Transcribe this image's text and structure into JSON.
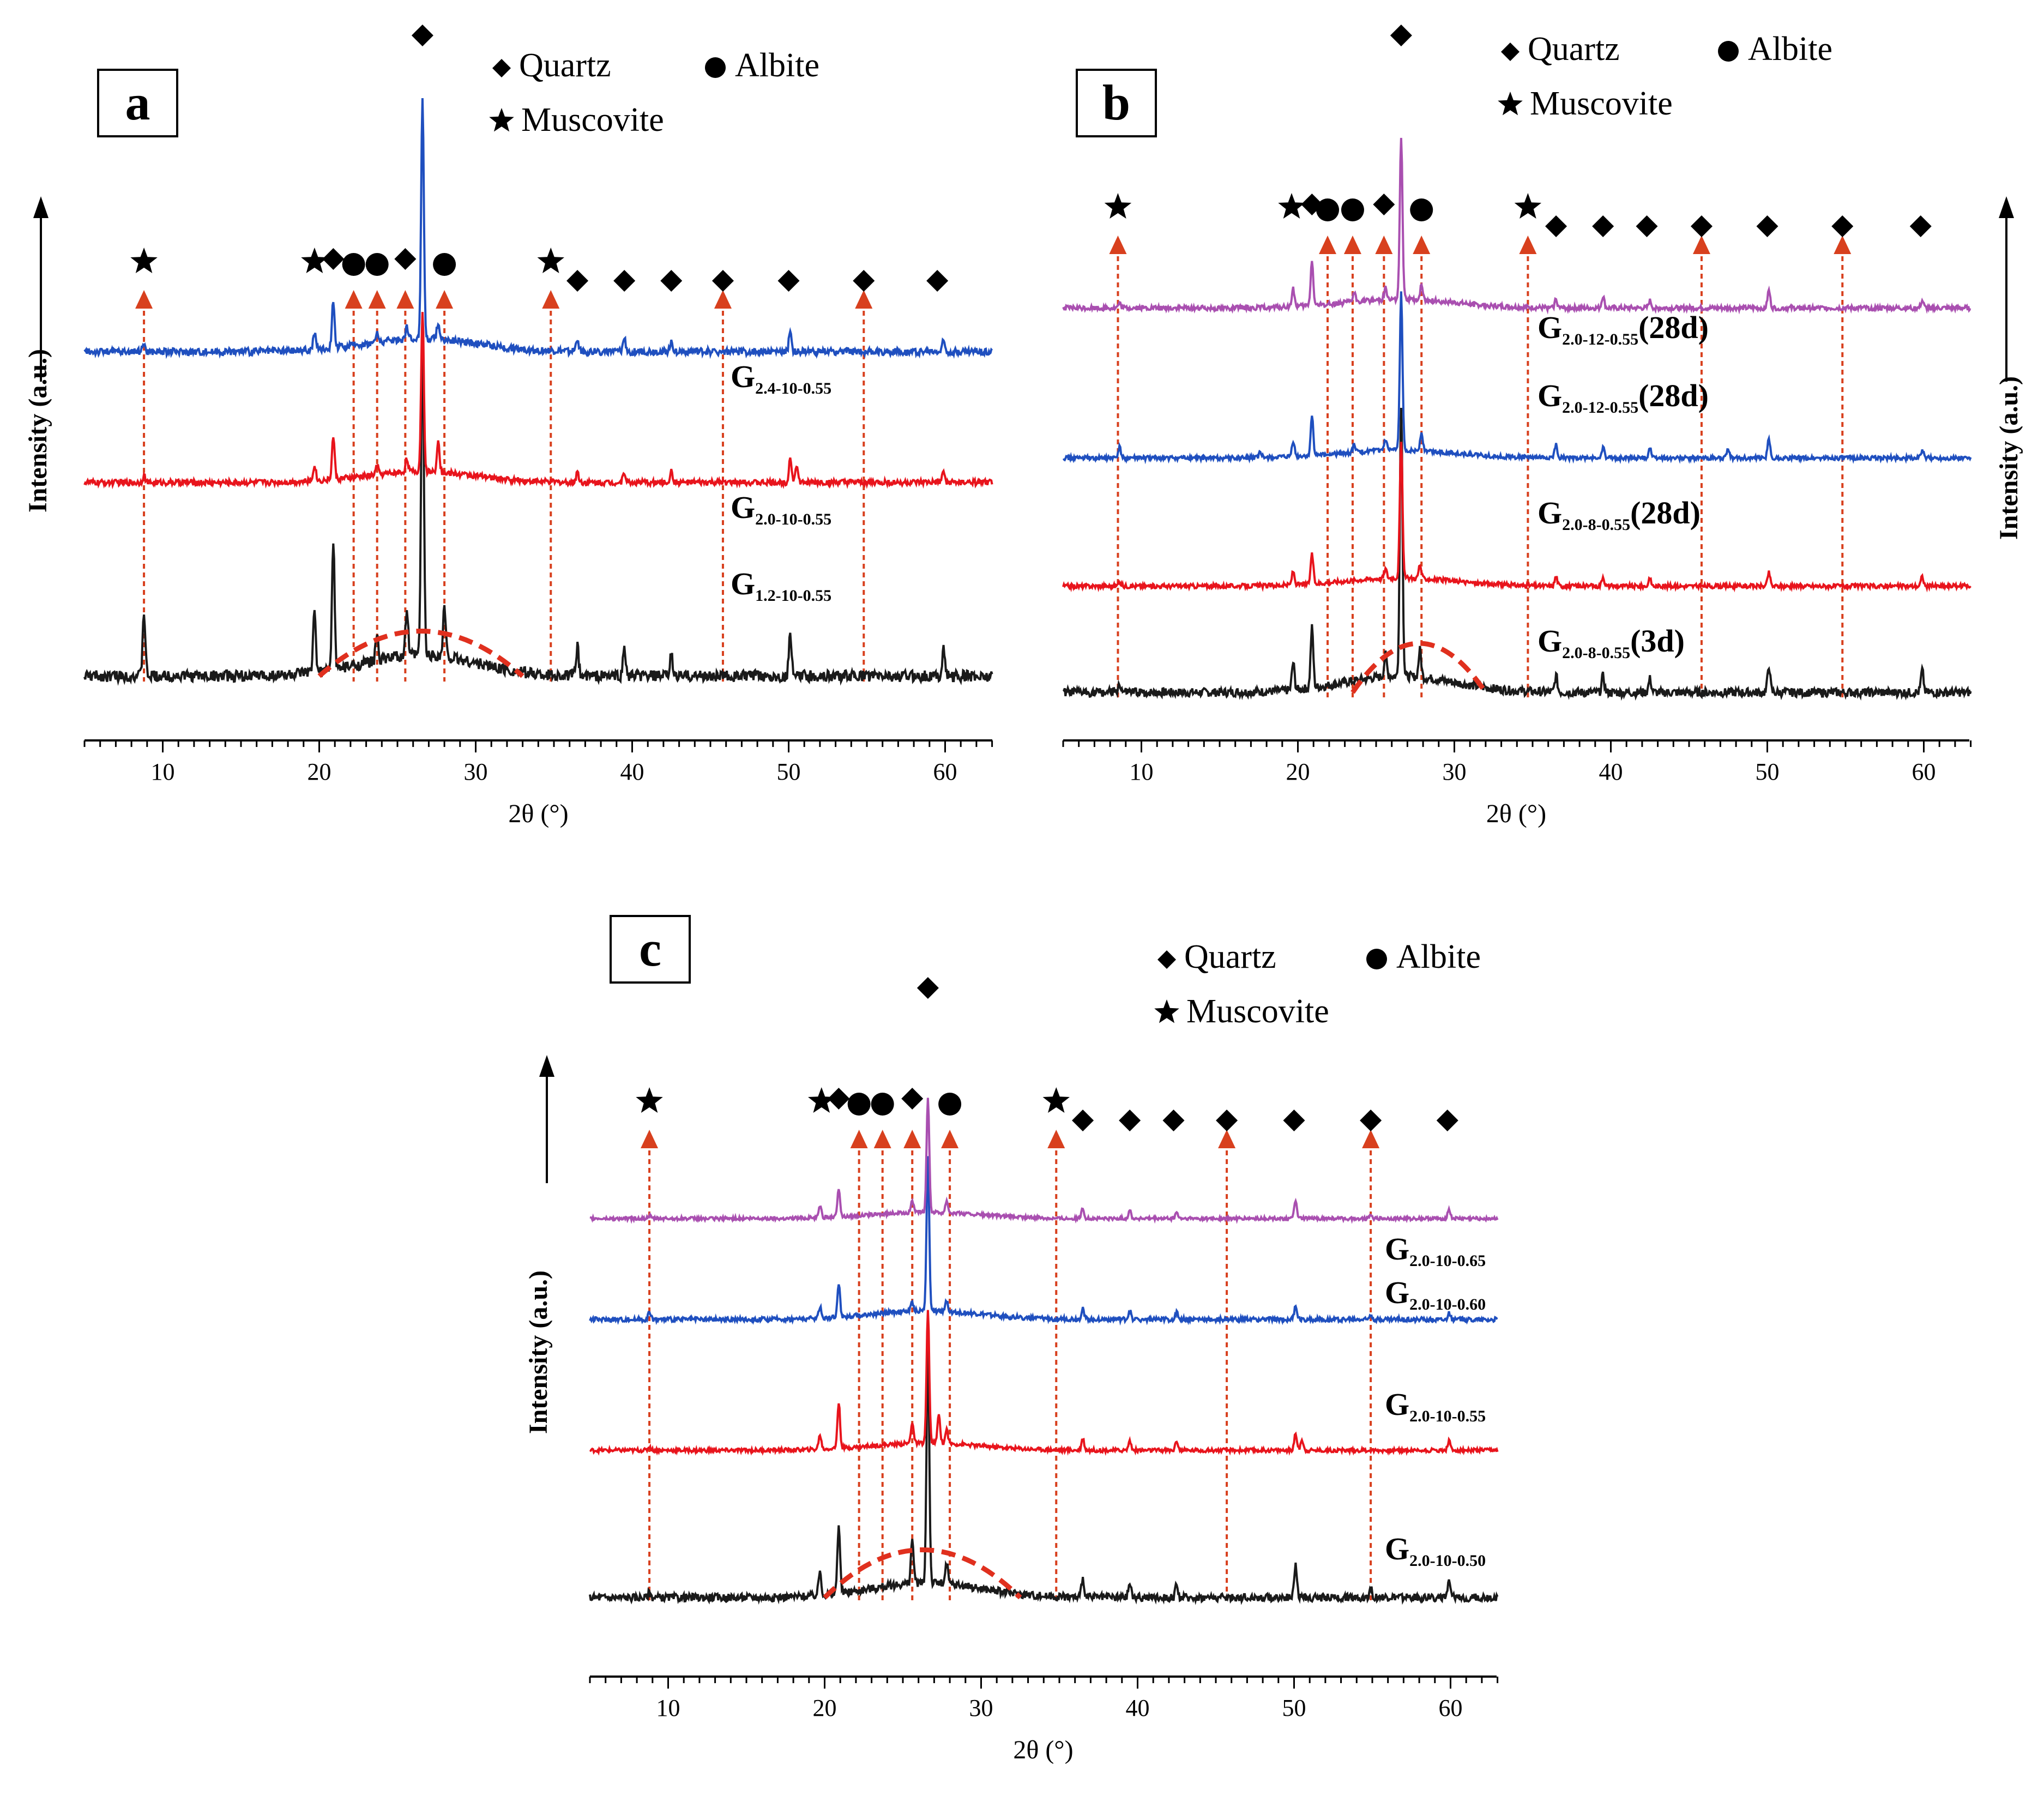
{
  "legend": {
    "quartz": "Quartz",
    "albite": "Albite",
    "muscovite": "Muscovite"
  },
  "colors": {
    "black": "#1a1a1a",
    "red": "#e8141c",
    "blue": "#1f4fbf",
    "purple": "#a94fb0",
    "marker_arrow": "#d8401e",
    "hump": "#e0301e"
  },
  "chart_data": [
    {
      "panel": "a",
      "type": "line",
      "xlabel": "2θ (°)",
      "ylabel": "Intensity (a.u.)",
      "xlim": [
        5,
        63
      ],
      "xticks": [
        10,
        20,
        30,
        40,
        50,
        60
      ],
      "tick_labels": [
        "10",
        "20",
        "30",
        "40",
        "50",
        "60"
      ],
      "series": [
        {
          "name": "G1.2-10-0.55",
          "label_main": "G",
          "label_sub": "1.2-10-0.55",
          "label_suffix": "",
          "color": "black",
          "peaks": [
            [
              8.8,
              18
            ],
            [
              19.7,
              18
            ],
            [
              20.9,
              36
            ],
            [
              23.7,
              8
            ],
            [
              25.6,
              13
            ],
            [
              26.6,
              95
            ],
            [
              28.0,
              14
            ],
            [
              36.5,
              8
            ],
            [
              39.5,
              8
            ],
            [
              42.5,
              6
            ],
            [
              50.1,
              12
            ],
            [
              59.9,
              8
            ]
          ]
        },
        {
          "name": "G2.0-10-0.55",
          "label_main": "G",
          "label_sub": "2.0-10-0.55",
          "label_suffix": "",
          "color": "red",
          "peaks": [
            [
              8.8,
              4
            ],
            [
              19.7,
              9
            ],
            [
              20.9,
              24
            ],
            [
              23.7,
              5
            ],
            [
              25.6,
              8
            ],
            [
              26.6,
              90
            ],
            [
              27.6,
              18
            ],
            [
              36.5,
              6
            ],
            [
              39.5,
              6
            ],
            [
              42.5,
              6
            ],
            [
              50.1,
              14
            ],
            [
              50.5,
              10
            ],
            [
              59.9,
              6
            ]
          ]
        },
        {
          "name": "G2.4-10-0.55",
          "label_main": "G",
          "label_sub": "2.4-10-0.55",
          "label_suffix": "",
          "color": "blue",
          "peaks": [
            [
              8.8,
              4
            ],
            [
              19.7,
              8
            ],
            [
              20.9,
              22
            ],
            [
              23.7,
              4
            ],
            [
              25.6,
              6
            ],
            [
              26.6,
              110
            ],
            [
              27.6,
              8
            ],
            [
              36.5,
              6
            ],
            [
              39.5,
              6
            ],
            [
              42.5,
              5
            ],
            [
              50.1,
              10
            ],
            [
              59.9,
              5
            ]
          ]
        }
      ],
      "markers": [
        {
          "x": 8.8,
          "symbol": "star"
        },
        {
          "x": 19.7,
          "symbol": "star"
        },
        {
          "x": 20.9,
          "symbol": "diamond"
        },
        {
          "x": 22.2,
          "symbol": "circle"
        },
        {
          "x": 23.7,
          "symbol": "circle"
        },
        {
          "x": 25.5,
          "symbol": "diamond"
        },
        {
          "x": 26.6,
          "symbol": "diamond"
        },
        {
          "x": 28.0,
          "symbol": "circle"
        },
        {
          "x": 34.8,
          "symbol": "star"
        },
        {
          "x": 36.5,
          "symbol": "diamond"
        },
        {
          "x": 39.5,
          "symbol": "diamond"
        },
        {
          "x": 42.5,
          "symbol": "diamond"
        },
        {
          "x": 45.8,
          "symbol": "diamond"
        },
        {
          "x": 50.0,
          "symbol": "diamond"
        },
        {
          "x": 54.8,
          "symbol": "diamond"
        },
        {
          "x": 59.5,
          "symbol": "diamond"
        }
      ],
      "arrow_lines": [
        8.8,
        22.2,
        23.7,
        25.5,
        28.0,
        34.8,
        45.8,
        54.8
      ]
    },
    {
      "panel": "b",
      "type": "line",
      "xlabel": "2θ (°)",
      "ylabel": "Intensity (a.u.)",
      "xlim": [
        5,
        63
      ],
      "xticks": [
        10,
        20,
        30,
        40,
        50,
        60
      ],
      "tick_labels": [
        "10",
        "20",
        "30",
        "40",
        "50",
        "60"
      ],
      "series": [
        {
          "name": "G2.0-8-0.55(3d)",
          "label_main": "G",
          "label_sub": "2.0-8-0.55",
          "label_suffix": "(3d)",
          "color": "black",
          "peaks": [
            [
              8.6,
              3
            ],
            [
              19.7,
              10
            ],
            [
              20.9,
              22
            ],
            [
              25.6,
              8
            ],
            [
              26.6,
              100
            ],
            [
              27.8,
              10
            ],
            [
              36.5,
              6
            ],
            [
              39.5,
              6
            ],
            [
              42.5,
              5
            ],
            [
              50.1,
              10
            ],
            [
              59.9,
              8
            ]
          ]
        },
        {
          "name": "G2.0-8-0.55(28d)",
          "label_main": "G",
          "label_sub": "2.0-8-0.55",
          "label_suffix": "(28d)",
          "color": "red",
          "peaks": [
            [
              8.6,
              3
            ],
            [
              19.7,
              10
            ],
            [
              20.9,
              22
            ],
            [
              25.6,
              7
            ],
            [
              26.6,
              100
            ],
            [
              27.8,
              10
            ],
            [
              36.5,
              7
            ],
            [
              39.5,
              7
            ],
            [
              42.5,
              5
            ],
            [
              50.1,
              10
            ],
            [
              59.9,
              7
            ]
          ]
        },
        {
          "name": "G2.0-12-0.55(28d)",
          "label_main": "G",
          "label_sub": "2.0-12-0.55",
          "label_suffix": "(28d)",
          "color": "blue",
          "peaks": [
            [
              8.6,
              8
            ],
            [
              17.6,
              4
            ],
            [
              19.7,
              12
            ],
            [
              20.9,
              30
            ],
            [
              23.6,
              6
            ],
            [
              25.6,
              8
            ],
            [
              26.6,
              120
            ],
            [
              27.9,
              14
            ],
            [
              36.5,
              10
            ],
            [
              39.5,
              8
            ],
            [
              42.5,
              8
            ],
            [
              47.5,
              6
            ],
            [
              50.1,
              14
            ],
            [
              59.9,
              6
            ]
          ]
        },
        {
          "name": "G2.0-12-0.55(28d) ",
          "label_main": "G",
          "label_sub": "2.0-12-0.55",
          "label_suffix": "(28d)",
          "color": "purple",
          "peaks": [
            [
              8.6,
              3
            ],
            [
              19.7,
              12
            ],
            [
              20.9,
              30
            ],
            [
              23.6,
              6
            ],
            [
              25.6,
              8
            ],
            [
              26.6,
              110
            ],
            [
              27.9,
              10
            ],
            [
              36.5,
              6
            ],
            [
              39.5,
              8
            ],
            [
              42.5,
              5
            ],
            [
              50.1,
              12
            ],
            [
              59.9,
              5
            ]
          ]
        }
      ],
      "markers": [
        {
          "x": 8.5,
          "symbol": "star"
        },
        {
          "x": 19.6,
          "symbol": "star"
        },
        {
          "x": 20.9,
          "symbol": "diamond"
        },
        {
          "x": 21.9,
          "symbol": "circle"
        },
        {
          "x": 23.5,
          "symbol": "circle"
        },
        {
          "x": 25.5,
          "symbol": "diamond"
        },
        {
          "x": 26.6,
          "symbol": "diamond"
        },
        {
          "x": 27.9,
          "symbol": "circle"
        },
        {
          "x": 34.7,
          "symbol": "star"
        },
        {
          "x": 36.5,
          "symbol": "diamond"
        },
        {
          "x": 39.5,
          "symbol": "diamond"
        },
        {
          "x": 42.3,
          "symbol": "diamond"
        },
        {
          "x": 45.8,
          "symbol": "diamond"
        },
        {
          "x": 50.0,
          "symbol": "diamond"
        },
        {
          "x": 54.8,
          "symbol": "diamond"
        },
        {
          "x": 59.8,
          "symbol": "diamond"
        }
      ],
      "arrow_lines": [
        8.5,
        21.9,
        23.5,
        25.5,
        27.9,
        34.7,
        45.8,
        54.8
      ]
    },
    {
      "panel": "c",
      "type": "line",
      "xlabel": "2θ (°)",
      "ylabel": "Intensity (a.u.)",
      "xlim": [
        5,
        63
      ],
      "xticks": [
        10,
        20,
        30,
        40,
        50,
        60
      ],
      "tick_labels": [
        "10",
        "20",
        "30",
        "40",
        "50",
        "60"
      ],
      "series": [
        {
          "name": "G2.0-10-0.50",
          "label_main": "G",
          "label_sub": "2.0-10-0.50",
          "label_suffix": "",
          "color": "black",
          "peaks": [
            [
              8.8,
              2
            ],
            [
              19.7,
              10
            ],
            [
              20.9,
              28
            ],
            [
              25.6,
              18
            ],
            [
              26.6,
              100
            ],
            [
              27.8,
              8
            ],
            [
              36.5,
              8
            ],
            [
              39.5,
              6
            ],
            [
              42.5,
              5
            ],
            [
              50.1,
              14
            ],
            [
              54.9,
              4
            ],
            [
              59.9,
              6
            ]
          ]
        },
        {
          "name": "G2.0-10-0.55",
          "label_main": "G",
          "label_sub": "2.0-10-0.55",
          "label_suffix": "",
          "color": "red",
          "peaks": [
            [
              8.8,
              3
            ],
            [
              19.7,
              12
            ],
            [
              20.9,
              38
            ],
            [
              25.6,
              18
            ],
            [
              26.6,
              110
            ],
            [
              27.3,
              24
            ],
            [
              27.8,
              12
            ],
            [
              36.5,
              10
            ],
            [
              39.5,
              8
            ],
            [
              42.5,
              8
            ],
            [
              50.1,
              14
            ],
            [
              50.5,
              9
            ],
            [
              59.9,
              8
            ]
          ]
        },
        {
          "name": "G2.0-10-0.60",
          "label_main": "G",
          "label_sub": "2.0-10-0.60",
          "label_suffix": "",
          "color": "blue",
          "peaks": [
            [
              8.8,
              5
            ],
            [
              19.7,
              8
            ],
            [
              20.9,
              24
            ],
            [
              25.6,
              6
            ],
            [
              26.6,
              110
            ],
            [
              27.8,
              8
            ],
            [
              36.5,
              8
            ],
            [
              39.5,
              6
            ],
            [
              42.5,
              5
            ],
            [
              50.1,
              10
            ],
            [
              54.9,
              4
            ],
            [
              59.9,
              5
            ]
          ]
        },
        {
          "name": "G2.0-10-0.65",
          "label_main": "G",
          "label_sub": "2.0-10-0.65",
          "label_suffix": "",
          "color": "purple",
          "peaks": [
            [
              8.8,
              3
            ],
            [
              19.7,
              12
            ],
            [
              20.9,
              28
            ],
            [
              25.6,
              12
            ],
            [
              26.6,
              110
            ],
            [
              27.8,
              12
            ],
            [
              36.5,
              10
            ],
            [
              39.5,
              8
            ],
            [
              42.5,
              6
            ],
            [
              50.1,
              18
            ],
            [
              54.9,
              5
            ],
            [
              59.9,
              9
            ]
          ]
        }
      ],
      "markers": [
        {
          "x": 8.8,
          "symbol": "star"
        },
        {
          "x": 19.8,
          "symbol": "star"
        },
        {
          "x": 20.9,
          "symbol": "diamond"
        },
        {
          "x": 22.2,
          "symbol": "circle"
        },
        {
          "x": 23.7,
          "symbol": "circle"
        },
        {
          "x": 25.6,
          "symbol": "diamond"
        },
        {
          "x": 26.6,
          "symbol": "diamond"
        },
        {
          "x": 28.0,
          "symbol": "circle"
        },
        {
          "x": 34.8,
          "symbol": "star"
        },
        {
          "x": 36.5,
          "symbol": "diamond"
        },
        {
          "x": 39.5,
          "symbol": "diamond"
        },
        {
          "x": 42.3,
          "symbol": "diamond"
        },
        {
          "x": 45.7,
          "symbol": "diamond"
        },
        {
          "x": 50.0,
          "symbol": "diamond"
        },
        {
          "x": 54.9,
          "symbol": "diamond"
        },
        {
          "x": 59.8,
          "symbol": "diamond"
        }
      ],
      "arrow_lines": [
        8.8,
        22.2,
        23.7,
        25.6,
        28.0,
        34.8,
        45.7,
        54.9
      ]
    }
  ]
}
